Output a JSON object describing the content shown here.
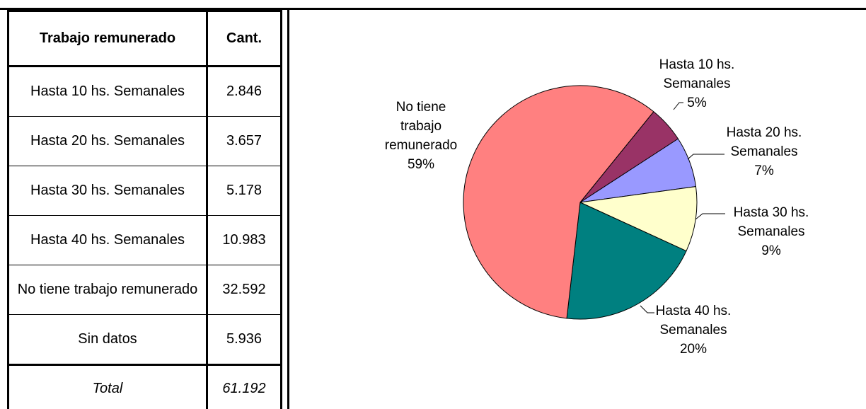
{
  "table": {
    "header": [
      "Trabajo remunerado",
      "Cant."
    ],
    "rows": [
      [
        "Hasta 10 hs. Semanales",
        "2.846"
      ],
      [
        "Hasta 20 hs. Semanales",
        "3.657"
      ],
      [
        "Hasta 30 hs. Semanales",
        "5.178"
      ],
      [
        "Hasta 40 hs. Semanales",
        "10.983"
      ],
      [
        "No tiene trabajo remunerado",
        "32.592"
      ],
      [
        "Sin datos",
        "5.936"
      ]
    ],
    "total": [
      "Total",
      "61.192"
    ]
  },
  "chart_data": {
    "type": "pie",
    "categories": [
      "Hasta 10 hs. Semanales",
      "Hasta 20 hs. Semanales",
      "Hasta 30 hs. Semanales",
      "Hasta 40 hs. Semanales",
      "No tiene trabajo remunerado"
    ],
    "values": [
      5,
      7,
      9,
      20,
      59
    ],
    "value_labels": [
      "5%",
      "7%",
      "9%",
      "20%",
      "59%"
    ],
    "colors": [
      "#993366",
      "#9999ff",
      "#ffffcc",
      "#008080",
      "#ff8080"
    ]
  }
}
